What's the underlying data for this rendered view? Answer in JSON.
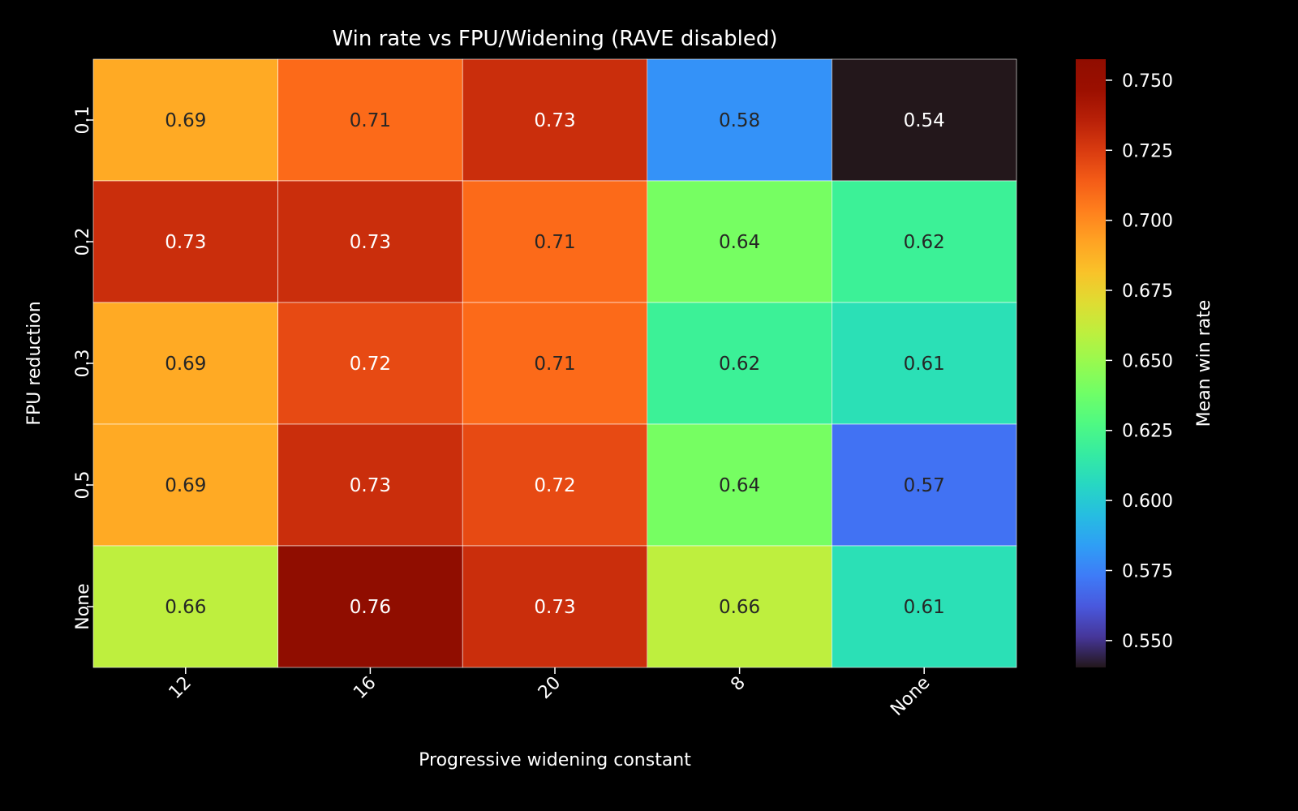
{
  "chart_data": {
    "type": "heatmap",
    "title": "Win rate vs FPU/Widening (RAVE disabled)",
    "xlabel": "Progressive widening constant",
    "ylabel": "FPU reduction",
    "x_categories": [
      "12",
      "16",
      "20",
      "8",
      "None"
    ],
    "y_categories": [
      "0.1",
      "0.2",
      "0.3",
      "0.5",
      "None"
    ],
    "values": [
      [
        0.69,
        0.71,
        0.73,
        0.58,
        0.54
      ],
      [
        0.73,
        0.73,
        0.71,
        0.64,
        0.62
      ],
      [
        0.69,
        0.72,
        0.71,
        0.62,
        0.61
      ],
      [
        0.69,
        0.73,
        0.72,
        0.64,
        0.57
      ],
      [
        0.66,
        0.76,
        0.73,
        0.66,
        0.61
      ]
    ],
    "colormap": "turbo",
    "colorbar": {
      "label": "Mean win rate",
      "range": [
        0.5404,
        0.7575
      ],
      "ticks": [
        "0.550",
        "0.575",
        "0.600",
        "0.625",
        "0.650",
        "0.675",
        "0.700",
        "0.725",
        "0.750"
      ]
    },
    "background": "#000000"
  }
}
